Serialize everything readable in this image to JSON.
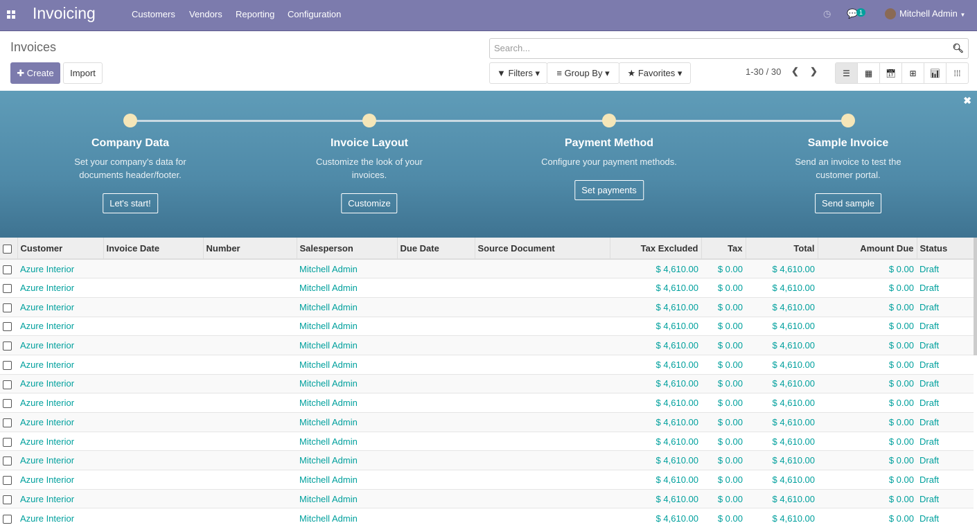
{
  "topbar": {
    "app": "Invoicing",
    "menu": [
      "Customers",
      "Vendors",
      "Reporting",
      "Configuration"
    ],
    "messages_badge": "1",
    "user": "Mitchell Admin"
  },
  "control": {
    "title": "Invoices",
    "create": "Create",
    "import": "Import",
    "search_placeholder": "Search...",
    "filters": "Filters",
    "group_by": "Group By",
    "favorites": "Favorites",
    "pager": "1-30 / 30"
  },
  "banner": {
    "steps": [
      {
        "title": "Company Data",
        "text": "Set your company's data for documents header/footer.",
        "button": "Let's start!"
      },
      {
        "title": "Invoice Layout",
        "text": "Customize the look of your invoices.",
        "button": "Customize"
      },
      {
        "title": "Payment Method",
        "text": "Configure your payment methods.",
        "button": "Set payments"
      },
      {
        "title": "Sample Invoice",
        "text": "Send an invoice to test the customer portal.",
        "button": "Send sample"
      }
    ]
  },
  "table": {
    "columns": [
      "Customer",
      "Invoice Date",
      "Number",
      "Salesperson",
      "Due Date",
      "Source Document",
      "Tax Excluded",
      "Tax",
      "Total",
      "Amount Due",
      "Status"
    ],
    "row": {
      "customer": "Azure Interior",
      "salesperson": "Mitchell Admin",
      "tax_excluded": "$ 4,610.00",
      "tax": "$ 0.00",
      "total": "$ 4,610.00",
      "amount_due": "$ 0.00",
      "status": "Draft"
    },
    "row_count": 14
  },
  "colors": {
    "brand": "#7c7bad",
    "link": "#00a09d"
  }
}
